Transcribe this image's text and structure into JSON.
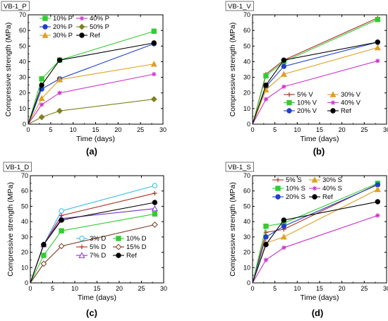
{
  "chart_data": [
    {
      "type": "line",
      "panel_title": "VB-1_P",
      "caption": "(a)",
      "xlabel": "Time (days)",
      "ylabel": "Compressive strength (MPa)",
      "xlim": [
        0,
        30
      ],
      "ylim": [
        0,
        70
      ],
      "xticks": [
        0,
        5,
        10,
        15,
        20,
        25,
        30
      ],
      "yticks": [
        0,
        10,
        20,
        30,
        40,
        50,
        60,
        70
      ],
      "legend_placement": "top-left",
      "legend_columns": 2,
      "x": [
        0,
        3,
        7,
        28
      ],
      "series": [
        {
          "name": "10% P",
          "color": "#33cc33",
          "marker": "square",
          "values": [
            0,
            29,
            41,
            59.5
          ]
        },
        {
          "name": "20% P",
          "color": "#1f3fcc",
          "marker": "circle",
          "values": [
            0,
            22.5,
            29,
            51.5
          ]
        },
        {
          "name": "30% P",
          "color": "#e0a020",
          "marker": "triangle-up",
          "values": [
            0,
            16.5,
            28.5,
            38.5
          ]
        },
        {
          "name": "40% P",
          "color": "#cc33cc",
          "marker": "star",
          "values": [
            0,
            12.5,
            20,
            32
          ]
        },
        {
          "name": "50% P",
          "color": "#808020",
          "marker": "diamond",
          "values": [
            0,
            4.5,
            8.5,
            16
          ]
        },
        {
          "name": "Ref",
          "color": "#000000",
          "marker": "circle",
          "values": [
            0,
            25,
            41,
            52
          ]
        }
      ]
    },
    {
      "type": "line",
      "panel_title": "VB-1_V",
      "caption": "(b)",
      "xlabel": "Time (days)",
      "ylabel": "Compressive strength (MPa)",
      "xlim": [
        0,
        30
      ],
      "ylim": [
        0,
        70
      ],
      "xticks": [
        0,
        5,
        10,
        15,
        20,
        25,
        30
      ],
      "yticks": [
        0,
        10,
        20,
        30,
        40,
        50,
        60,
        70
      ],
      "legend_placement": "bottom-right",
      "legend_columns": 2,
      "x": [
        0,
        3,
        7,
        28
      ],
      "series": [
        {
          "name": "5% V",
          "color": "#b03020",
          "marker": "plus",
          "values": [
            0,
            32,
            41,
            68
          ]
        },
        {
          "name": "10% V",
          "color": "#33cc33",
          "marker": "square",
          "values": [
            0,
            31,
            40,
            67
          ]
        },
        {
          "name": "20% V",
          "color": "#1f3fcc",
          "marker": "circle",
          "values": [
            0,
            24,
            37,
            52.5
          ]
        },
        {
          "name": "30% V",
          "color": "#e0a020",
          "marker": "triangle-up",
          "values": [
            0,
            22,
            32,
            49
          ]
        },
        {
          "name": "40% V",
          "color": "#cc33cc",
          "marker": "star",
          "values": [
            0,
            16,
            24,
            40.5
          ]
        },
        {
          "name": "Ref",
          "color": "#000000",
          "marker": "circle",
          "values": [
            0,
            25,
            41,
            52.5
          ]
        }
      ]
    },
    {
      "type": "line",
      "panel_title": "VB-1_D",
      "caption": "(c)",
      "xlabel": "Time (days)",
      "ylabel": "Compressive strength (MPa)",
      "xlim": [
        0,
        30
      ],
      "ylim": [
        0,
        70
      ],
      "xticks": [
        0,
        5,
        10,
        15,
        20,
        25,
        30
      ],
      "yticks": [
        0,
        10,
        20,
        30,
        40,
        50,
        60,
        70
      ],
      "legend_placement": "bottom-right",
      "legend_columns": 2,
      "x": [
        0,
        3,
        7,
        28
      ],
      "series": [
        {
          "name": "3% D",
          "color": "#33bbee",
          "marker": "circle-open",
          "values": [
            0,
            25,
            47,
            63.5
          ]
        },
        {
          "name": "5% D",
          "color": "#b03020",
          "marker": "plus",
          "values": [
            0,
            25,
            44,
            58.5
          ]
        },
        {
          "name": "7% D",
          "color": "#7a2fd0",
          "marker": "triangle-open",
          "values": [
            0,
            25,
            42,
            48.5
          ]
        },
        {
          "name": "10% D",
          "color": "#33cc33",
          "marker": "square",
          "values": [
            0,
            18,
            34,
            45
          ]
        },
        {
          "name": "15% D",
          "color": "#7a3a20",
          "marker": "diamond-open",
          "values": [
            0,
            12.5,
            24,
            38
          ]
        },
        {
          "name": "Ref",
          "color": "#000000",
          "marker": "circle",
          "values": [
            0,
            25,
            41,
            52.5
          ]
        }
      ]
    },
    {
      "type": "line",
      "panel_title": "VB-1_S",
      "caption": "(d)",
      "xlabel": "Time (days)",
      "ylabel": "Compressive strength (MPa)",
      "xlim": [
        0,
        30
      ],
      "ylim": [
        0,
        70
      ],
      "xticks": [
        0,
        5,
        10,
        15,
        20,
        25,
        30
      ],
      "yticks": [
        0,
        10,
        20,
        30,
        40,
        50,
        60,
        70
      ],
      "legend_placement": "top-left",
      "legend_columns": 2,
      "x": [
        0,
        3,
        7,
        28
      ],
      "series": [
        {
          "name": "5% S",
          "color": "#b03020",
          "marker": "plus",
          "values": [
            0,
            33,
            35,
            64.5
          ]
        },
        {
          "name": "10% S",
          "color": "#33cc33",
          "marker": "square",
          "values": [
            0,
            37,
            39,
            65
          ]
        },
        {
          "name": "20% S",
          "color": "#1f3fcc",
          "marker": "circle",
          "values": [
            0,
            30,
            37,
            64
          ]
        },
        {
          "name": "30% S",
          "color": "#e0a020",
          "marker": "triangle-up",
          "values": [
            0,
            26,
            30,
            61
          ]
        },
        {
          "name": "40% S",
          "color": "#cc33cc",
          "marker": "star",
          "values": [
            0,
            15,
            23,
            44
          ]
        },
        {
          "name": "Ref",
          "color": "#000000",
          "marker": "circle",
          "values": [
            0,
            25,
            41,
            53
          ]
        }
      ]
    }
  ]
}
